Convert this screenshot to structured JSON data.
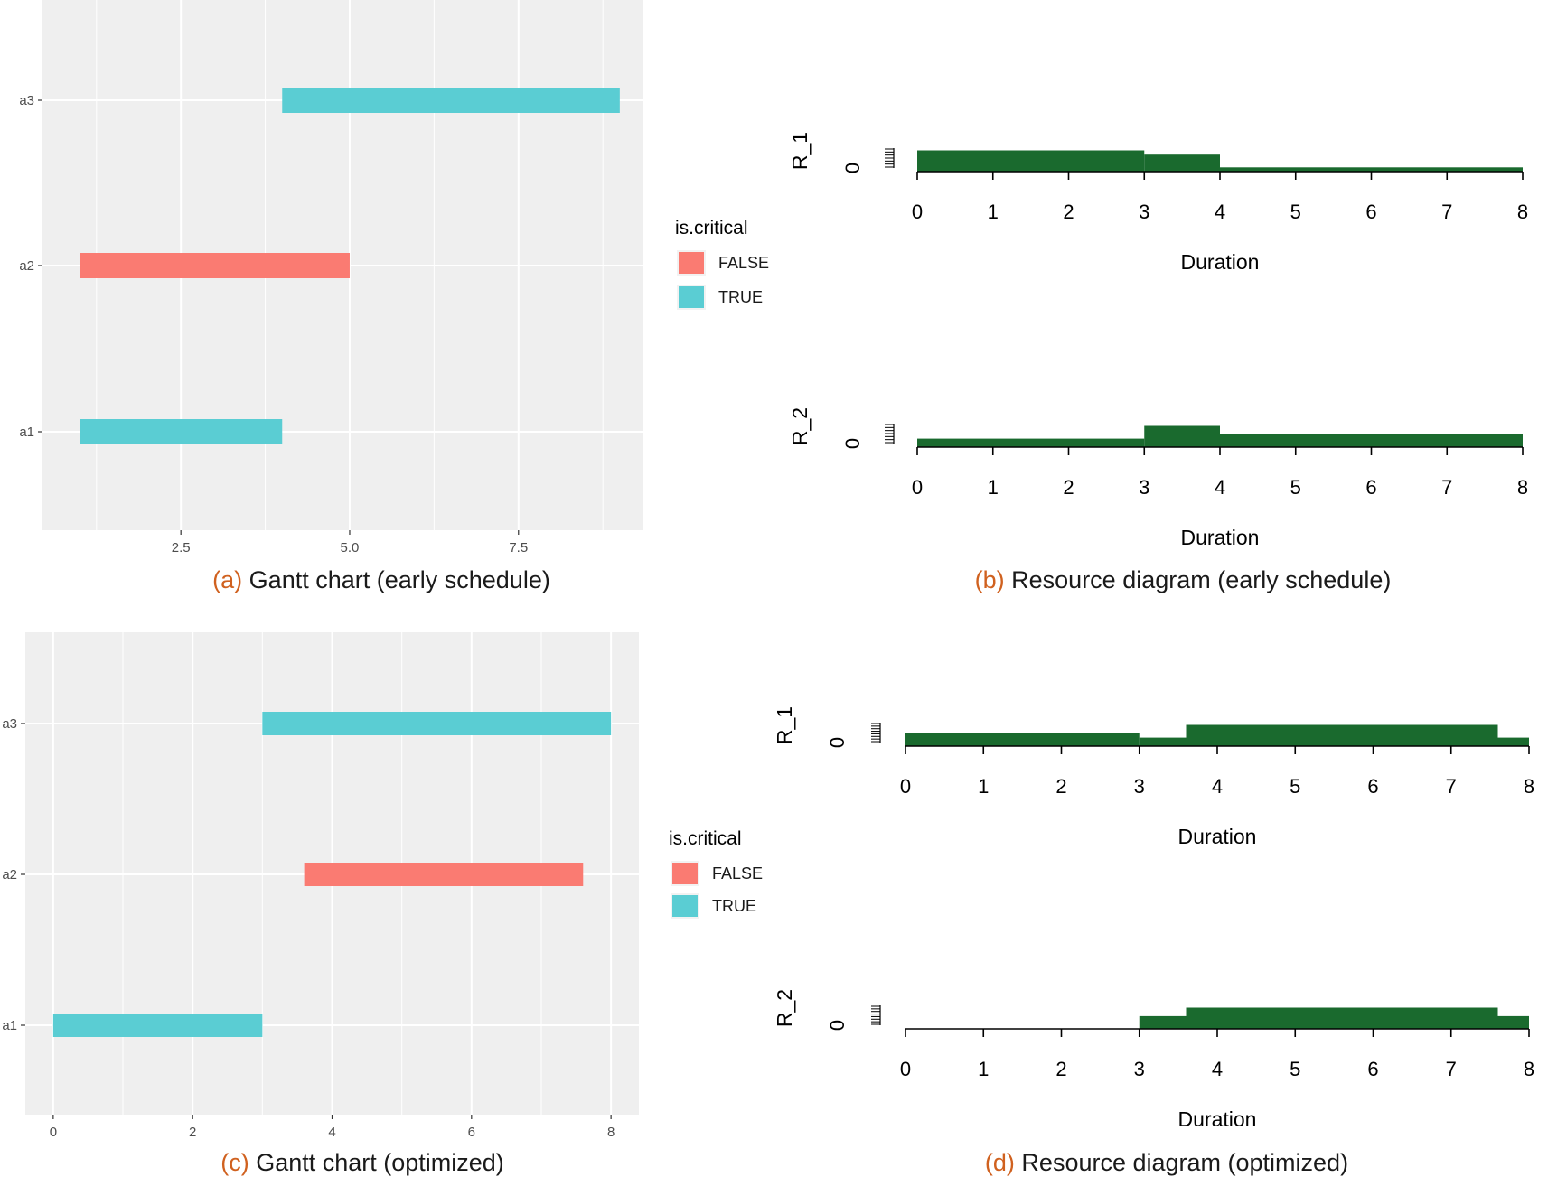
{
  "colors": {
    "panel_bg": "#efefef",
    "grid": "#ffffff",
    "false_color": "#fa7b72",
    "true_color": "#5acdd3",
    "resource_fill": "#1a6a2e",
    "caption_letter": "#d0611f"
  },
  "chart_data": [
    {
      "type": "gantt",
      "caption_letter": "(a)",
      "caption_text": "Gantt chart (early schedule)",
      "xlim": [
        0.45,
        9.35
      ],
      "x_ticks": [
        2.5,
        5.0,
        7.5
      ],
      "x_tick_labels": [
        "2.5",
        "5.0",
        "7.5"
      ],
      "categories": [
        "a1",
        "a2",
        "a3"
      ],
      "tasks": [
        {
          "name": "a1",
          "start": 1,
          "end": 4,
          "is_critical": true
        },
        {
          "name": "a2",
          "start": 1,
          "end": 5,
          "is_critical": false
        },
        {
          "name": "a3",
          "start": 4,
          "end": 9,
          "is_critical": true
        }
      ],
      "legend": {
        "title": "is.critical",
        "entries": [
          "FALSE",
          "TRUE"
        ],
        "position": "right"
      },
      "grid": true
    },
    {
      "type": "resource_diagram",
      "caption_letter": "(b)",
      "caption_text": "Resource diagram (early schedule)",
      "xlabel": "Duration",
      "xlim": [
        0,
        8
      ],
      "x_ticks": [
        0,
        1,
        2,
        3,
        4,
        5,
        6,
        7,
        8
      ],
      "resources": [
        {
          "name": "R_1",
          "zero_label": "0",
          "steps": [
            {
              "from": 0,
              "to": 3,
              "level": 5
            },
            {
              "from": 3,
              "to": 4,
              "level": 4
            },
            {
              "from": 4,
              "to": 8,
              "level": 1
            }
          ]
        },
        {
          "name": "R_2",
          "zero_label": "0",
          "steps": [
            {
              "from": 0,
              "to": 3,
              "level": 2
            },
            {
              "from": 3,
              "to": 4,
              "level": 5
            },
            {
              "from": 4,
              "to": 8,
              "level": 3
            }
          ]
        }
      ]
    },
    {
      "type": "gantt",
      "caption_letter": "(c)",
      "caption_text": "Gantt chart (optimized)",
      "xlim": [
        -0.4,
        8.4
      ],
      "x_ticks": [
        0,
        2,
        4,
        6,
        8
      ],
      "x_tick_labels": [
        "0",
        "2",
        "4",
        "6",
        "8"
      ],
      "categories": [
        "a1",
        "a2",
        "a3"
      ],
      "tasks": [
        {
          "name": "a1",
          "start": 0,
          "end": 3,
          "is_critical": true
        },
        {
          "name": "a2",
          "start": 3.6,
          "end": 7.6,
          "is_critical": false
        },
        {
          "name": "a3",
          "start": 3,
          "end": 8,
          "is_critical": true
        }
      ],
      "legend": {
        "title": "is.critical",
        "entries": [
          "FALSE",
          "TRUE"
        ],
        "position": "right"
      },
      "grid": true
    },
    {
      "type": "resource_diagram",
      "caption_letter": "(d)",
      "caption_text": "Resource diagram (optimized)",
      "xlabel": "Duration",
      "xlim": [
        0,
        8
      ],
      "x_ticks": [
        0,
        1,
        2,
        3,
        4,
        5,
        6,
        7,
        8
      ],
      "resources": [
        {
          "name": "R_1",
          "zero_label": "0",
          "steps": [
            {
              "from": 0,
              "to": 3,
              "level": 3
            },
            {
              "from": 3,
              "to": 3.6,
              "level": 2
            },
            {
              "from": 3.6,
              "to": 7.6,
              "level": 5
            },
            {
              "from": 7.6,
              "to": 8,
              "level": 2
            }
          ]
        },
        {
          "name": "R_2",
          "zero_label": "0",
          "steps": [
            {
              "from": 0,
              "to": 3,
              "level": 0
            },
            {
              "from": 3,
              "to": 3.6,
              "level": 3
            },
            {
              "from": 3.6,
              "to": 7.6,
              "level": 5
            },
            {
              "from": 7.6,
              "to": 8,
              "level": 3
            }
          ]
        }
      ]
    }
  ]
}
